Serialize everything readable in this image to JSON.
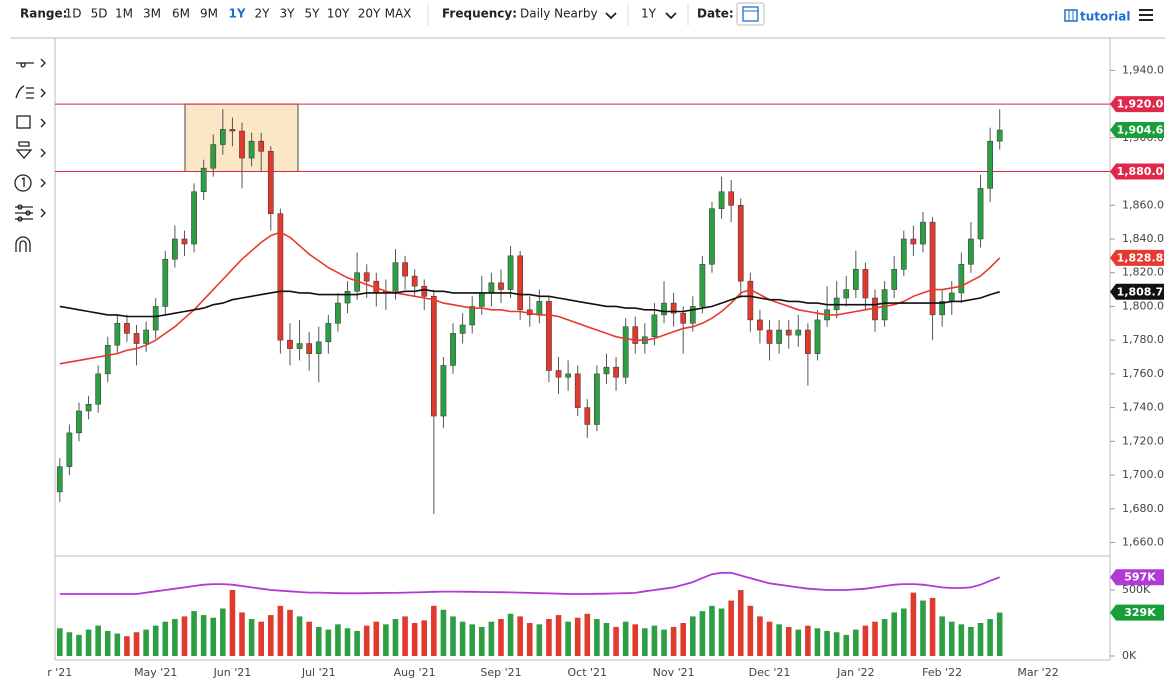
{
  "toolbar": {
    "range_label": "Range:",
    "ranges": [
      "1D",
      "5D",
      "1M",
      "3M",
      "6M",
      "9M",
      "1Y",
      "2Y",
      "3Y",
      "5Y",
      "10Y",
      "20Y",
      "MAX"
    ],
    "active_range": "1Y",
    "active_color": "#1f6fd1",
    "frequency_label": "Frequency:",
    "frequency": "Daily Nearby",
    "period": "1Y",
    "date_label": "Date:",
    "tutorial": "tutorial"
  },
  "chart_data": [
    {
      "type": "candlestick",
      "open": [
        1690,
        1705,
        1725,
        1738,
        1742,
        1760,
        1777,
        1790,
        1784,
        1778,
        1786,
        1800,
        1828,
        1840,
        1837,
        1868,
        1882,
        1896,
        1905,
        1904,
        1888,
        1898,
        1892,
        1855,
        1780,
        1775,
        1778,
        1772,
        1779,
        1790,
        1802,
        1809,
        1820,
        1815,
        1808,
        1809,
        1826,
        1818,
        1812,
        1806,
        1735,
        1765,
        1784,
        1789,
        1800,
        1808,
        1814,
        1810,
        1830,
        1798,
        1795,
        1803,
        1762,
        1758,
        1760,
        1740,
        1730,
        1760,
        1764,
        1758,
        1788,
        1778,
        1782,
        1795,
        1802,
        1796,
        1790,
        1800,
        1825,
        1858,
        1868,
        1860,
        1815,
        1792,
        1786,
        1778,
        1786,
        1783,
        1786,
        1772,
        1792,
        1798,
        1805,
        1810,
        1822,
        1805,
        1792,
        1810,
        1822,
        1840,
        1837,
        1850,
        1795,
        1803,
        1808,
        1825,
        1840,
        1870,
        1898,
        null,
        null,
        null,
        null,
        null,
        null,
        null,
        null,
        null,
        null,
        null
      ],
      "high": [
        1710,
        1730,
        1743,
        1747,
        1765,
        1782,
        1795,
        1795,
        1789,
        1791,
        1805,
        1833,
        1848,
        1845,
        1873,
        1887,
        1902,
        1917,
        1912,
        1909,
        1903,
        1903,
        1895,
        1858,
        1790,
        1792,
        1785,
        1788,
        1795,
        1808,
        1815,
        1832,
        1825,
        1820,
        1816,
        1834,
        1830,
        1822,
        1816,
        1810,
        1770,
        1790,
        1796,
        1806,
        1818,
        1820,
        1822,
        1836,
        1833,
        1806,
        1810,
        1806,
        1770,
        1768,
        1765,
        1745,
        1765,
        1772,
        1770,
        1793,
        1794,
        1790,
        1802,
        1815,
        1808,
        1800,
        1806,
        1830,
        1862,
        1877,
        1875,
        1864,
        1820,
        1798,
        1792,
        1792,
        1792,
        1795,
        1790,
        1798,
        1812,
        1815,
        1818,
        1833,
        1826,
        1810,
        1815,
        1830,
        1845,
        1848,
        1856,
        1853,
        1810,
        1815,
        1832,
        1850,
        1878,
        1906,
        1917,
        null,
        null,
        null,
        null,
        null,
        null,
        null,
        null,
        null,
        null,
        null
      ],
      "low": [
        1684,
        1700,
        1720,
        1733,
        1737,
        1755,
        1772,
        1779,
        1765,
        1773,
        1781,
        1795,
        1823,
        1830,
        1832,
        1863,
        1877,
        1890,
        1895,
        1870,
        1883,
        1880,
        1845,
        1772,
        1765,
        1768,
        1762,
        1755,
        1772,
        1785,
        1796,
        1804,
        1805,
        1800,
        1798,
        1804,
        1810,
        1806,
        1798,
        1677,
        1728,
        1760,
        1778,
        1784,
        1795,
        1800,
        1802,
        1805,
        1792,
        1788,
        1790,
        1755,
        1748,
        1750,
        1735,
        1722,
        1726,
        1754,
        1750,
        1754,
        1772,
        1772,
        1777,
        1790,
        1788,
        1772,
        1785,
        1796,
        1820,
        1852,
        1850,
        1805,
        1785,
        1778,
        1768,
        1772,
        1775,
        1776,
        1753,
        1768,
        1788,
        1793,
        1800,
        1805,
        1798,
        1785,
        1788,
        1805,
        1818,
        1830,
        1832,
        1780,
        1788,
        1795,
        1802,
        1820,
        1835,
        1862,
        1893,
        null,
        null,
        null,
        null,
        null,
        null,
        null,
        null,
        null,
        null,
        null
      ],
      "close": [
        1705,
        1725,
        1738,
        1742,
        1760,
        1777,
        1790,
        1784,
        1778,
        1786,
        1800,
        1828,
        1840,
        1837,
        1868,
        1882,
        1896,
        1905,
        1904,
        1888,
        1898,
        1892,
        1855,
        1780,
        1775,
        1778,
        1772,
        1779,
        1790,
        1802,
        1809,
        1820,
        1815,
        1808,
        1809,
        1826,
        1818,
        1812,
        1806,
        1735,
        1765,
        1784,
        1789,
        1800,
        1808,
        1814,
        1810,
        1830,
        1798,
        1795,
        1803,
        1762,
        1758,
        1760,
        1740,
        1730,
        1760,
        1764,
        1758,
        1788,
        1778,
        1782,
        1795,
        1802,
        1796,
        1790,
        1800,
        1825,
        1858,
        1868,
        1860,
        1815,
        1792,
        1786,
        1778,
        1786,
        1783,
        1786,
        1772,
        1792,
        1798,
        1805,
        1810,
        1822,
        1805,
        1792,
        1810,
        1822,
        1840,
        1837,
        1850,
        1795,
        1803,
        1808,
        1825,
        1840,
        1870,
        1898,
        1904.6,
        null,
        null,
        null,
        null,
        null,
        null,
        null,
        null,
        null,
        null,
        null
      ],
      "close_label": "1,904.6",
      "up_color": "#2e9e45",
      "down_color": "#e03a2f",
      "close_tag_color": "#1a9e3a",
      "ylim": [
        1652,
        1958
      ],
      "yticks": [
        {
          "value": 1660,
          "label": "1,660.0"
        },
        {
          "value": 1680,
          "label": "1,680.0"
        },
        {
          "value": 1700,
          "label": "1,700.0"
        },
        {
          "value": 1720,
          "label": "1,720.0"
        },
        {
          "value": 1740,
          "label": "1,740.0"
        },
        {
          "value": 1760,
          "label": "1,760.0"
        },
        {
          "value": 1780,
          "label": "1,780.0"
        },
        {
          "value": 1800,
          "label": "1,800.0"
        },
        {
          "value": 1820,
          "label": "1,820.0"
        },
        {
          "value": 1840,
          "label": "1,840.0"
        },
        {
          "value": 1860,
          "label": "1,860.0"
        },
        {
          "value": 1880,
          "label": "1,880.0"
        },
        {
          "value": 1900,
          "label": "1,900.0"
        },
        {
          "value": 1920,
          "label": "1,920.0"
        },
        {
          "value": 1940,
          "label": "1,940.0"
        }
      ],
      "levels": [
        {
          "value": 1920,
          "label": "1,920.0"
        },
        {
          "value": 1880,
          "label": "1,880.0"
        }
      ],
      "level_color": "#e0294a",
      "zone_color": "#fbe6c6",
      "series": [
        {
          "color": "#e8392f",
          "last_label": "1,828.8",
          "values": [
            1766,
            1767,
            1768,
            1769,
            1770,
            1771,
            1772,
            1774,
            1775,
            1777,
            1780,
            1784,
            1788,
            1793,
            1798,
            1804,
            1810,
            1816,
            1822,
            1828,
            1833,
            1838,
            1842,
            1844,
            1841,
            1836,
            1831,
            1827,
            1823,
            1820,
            1817,
            1815,
            1813,
            1811,
            1809,
            1808,
            1807,
            1806,
            1805,
            1804,
            1802,
            1801,
            1800,
            1799,
            1799,
            1798,
            1798,
            1797,
            1797,
            1796,
            1795,
            1795,
            1794,
            1792,
            1790,
            1788,
            1786,
            1784,
            1782,
            1781,
            1780,
            1780,
            1781,
            1783,
            1785,
            1787,
            1788,
            1790,
            1793,
            1797,
            1802,
            1808,
            1810,
            1807,
            1804,
            1802,
            1800,
            1798,
            1797,
            1796,
            1795,
            1795,
            1796,
            1797,
            1798,
            1799,
            1800,
            1801,
            1803,
            1806,
            1808,
            1810,
            1810,
            1811,
            1812,
            1815,
            1818,
            1823,
            1828.8,
            null,
            null,
            null,
            null,
            null,
            null,
            null,
            null,
            null,
            null,
            null
          ]
        },
        {
          "color": "#111111",
          "last_label": "1,808.7",
          "values": [
            1800,
            1799,
            1798,
            1797,
            1796,
            1795,
            1795,
            1794,
            1794,
            1794,
            1794,
            1795,
            1796,
            1797,
            1798,
            1799,
            1801,
            1802,
            1804,
            1805,
            1806,
            1807,
            1808,
            1809,
            1809,
            1808,
            1808,
            1807,
            1807,
            1807,
            1807,
            1807,
            1808,
            1808,
            1808,
            1808,
            1809,
            1809,
            1810,
            1809,
            1809,
            1808,
            1808,
            1808,
            1808,
            1808,
            1808,
            1808,
            1807,
            1807,
            1806,
            1806,
            1805,
            1804,
            1803,
            1802,
            1801,
            1800,
            1800,
            1799,
            1799,
            1798,
            1798,
            1797,
            1797,
            1797,
            1798,
            1799,
            1800,
            1802,
            1804,
            1806,
            1806,
            1805,
            1804,
            1804,
            1803,
            1803,
            1802,
            1802,
            1801,
            1801,
            1801,
            1801,
            1801,
            1801,
            1802,
            1802,
            1802,
            1802,
            1802,
            1802,
            1802,
            1803,
            1803,
            1804,
            1805,
            1807,
            1808.7,
            null,
            null,
            null,
            null,
            null,
            null,
            null,
            null,
            null,
            null,
            null
          ]
        }
      ]
    },
    {
      "type": "bar",
      "categories": [
        "r '21",
        null,
        null,
        null,
        null,
        null,
        null,
        null,
        null,
        null,
        "May '21",
        null,
        null,
        null,
        null,
        null,
        null,
        null,
        "Jun '21",
        null,
        null,
        null,
        null,
        null,
        null,
        null,
        null,
        "Jul '21",
        null,
        null,
        null,
        null,
        null,
        null,
        null,
        null,
        null,
        "Aug '21",
        null,
        null,
        null,
        null,
        null,
        null,
        null,
        null,
        "Sep '21",
        null,
        null,
        null,
        null,
        null,
        null,
        null,
        null,
        "Oct '21",
        null,
        null,
        null,
        null,
        null,
        null,
        null,
        null,
        "Nov '21",
        null,
        null,
        null,
        null,
        null,
        null,
        null,
        null,
        null,
        "Dec '21",
        null,
        null,
        null,
        null,
        null,
        null,
        null,
        null,
        "Jan '22",
        null,
        null,
        null,
        null,
        null,
        null,
        null,
        null,
        "Feb '22",
        null,
        null,
        null,
        null,
        null,
        null,
        null,
        null,
        null,
        "Mar '22",
        null,
        null,
        null,
        null,
        null,
        null,
        null
      ],
      "values": [
        210,
        180,
        160,
        200,
        230,
        190,
        170,
        150,
        180,
        200,
        230,
        260,
        280,
        300,
        340,
        310,
        290,
        360,
        500,
        330,
        280,
        260,
        310,
        380,
        350,
        300,
        260,
        220,
        200,
        240,
        210,
        190,
        230,
        260,
        240,
        280,
        300,
        250,
        270,
        380,
        350,
        300,
        260,
        240,
        220,
        260,
        280,
        320,
        300,
        250,
        240,
        280,
        310,
        260,
        290,
        320,
        280,
        250,
        220,
        260,
        240,
        210,
        230,
        200,
        220,
        250,
        300,
        340,
        380,
        360,
        420,
        500,
        380,
        300,
        260,
        240,
        220,
        200,
        230,
        210,
        190,
        180,
        160,
        200,
        230,
        260,
        280,
        330,
        360,
        480,
        420,
        440,
        300,
        260,
        240,
        220,
        250,
        280,
        329,
        null,
        null,
        null,
        null,
        null,
        null,
        null,
        null,
        null,
        null,
        null
      ],
      "last_label": "329K",
      "last_color": "#1a9e3a",
      "ylim": [
        0,
        750
      ],
      "yticks": [
        {
          "value": 0,
          "label": "0K"
        },
        {
          "value": 500,
          "label": "500K"
        }
      ],
      "average": {
        "color": "#b03ad6",
        "last_label": "597K",
        "values": [
          470,
          470,
          470,
          470,
          470,
          470,
          470,
          470,
          470,
          480,
          490,
          500,
          510,
          520,
          530,
          540,
          545,
          545,
          540,
          530,
          520,
          510,
          500,
          495,
          490,
          485,
          480,
          480,
          478,
          476,
          475,
          475,
          476,
          477,
          478,
          478,
          480,
          482,
          484,
          486,
          488,
          488,
          487,
          486,
          485,
          484,
          483,
          482,
          480,
          478,
          476,
          474,
          472,
          470,
          470,
          470,
          471,
          472,
          474,
          476,
          478,
          490,
          500,
          510,
          520,
          540,
          560,
          590,
          620,
          630,
          630,
          610,
          590,
          570,
          550,
          540,
          530,
          520,
          510,
          505,
          500,
          500,
          500,
          505,
          510,
          520,
          530,
          540,
          545,
          545,
          540,
          530,
          520,
          515,
          515,
          520,
          540,
          570,
          597,
          null,
          null,
          null,
          null,
          null,
          null,
          null,
          null,
          null,
          null,
          null
        ]
      }
    }
  ]
}
